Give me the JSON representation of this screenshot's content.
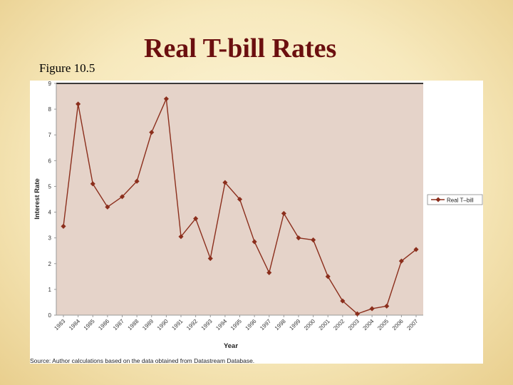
{
  "slide": {
    "figure_label": "Figure 10.5",
    "title": "Real T-bill Rates"
  },
  "source_note": "Source: Author calculations based on the data obtained from Datastream Database.",
  "colors": {
    "plot_background": "#e5d3c9",
    "series_line": "#8b2e1c"
  },
  "chart_data": {
    "type": "line",
    "title": "",
    "xlabel": "Year",
    "ylabel": "Interest Rate",
    "ylim": [
      0,
      9
    ],
    "yticks": [
      0,
      1,
      2,
      3,
      4,
      5,
      6,
      7,
      8,
      9
    ],
    "grid": false,
    "legend_position": "right",
    "categories": [
      "1983",
      "1984",
      "1985",
      "1986",
      "1987",
      "1988",
      "1989",
      "1990",
      "1991",
      "1992",
      "1993",
      "1994",
      "1995",
      "1996",
      "1997",
      "1998",
      "1999",
      "2000",
      "2001",
      "2002",
      "2003",
      "2004",
      "2005",
      "2006",
      "2007"
    ],
    "series": [
      {
        "name": "Real T–bill",
        "values": [
          3.45,
          8.2,
          5.1,
          4.2,
          4.6,
          5.2,
          7.1,
          8.4,
          3.05,
          3.75,
          2.2,
          5.15,
          4.5,
          2.85,
          1.65,
          3.95,
          3.0,
          2.92,
          1.5,
          0.55,
          0.05,
          0.25,
          0.35,
          2.1,
          2.55
        ]
      }
    ]
  }
}
